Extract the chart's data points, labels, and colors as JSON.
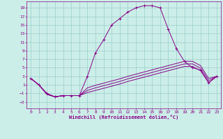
{
  "xlabel": "Windchill (Refroidissement éolien,°C)",
  "bg_color": "#cceee8",
  "grid_color": "#99cccc",
  "line_color": "#880088",
  "x_ticks": [
    0,
    1,
    2,
    3,
    4,
    5,
    6,
    7,
    8,
    9,
    10,
    11,
    12,
    13,
    14,
    15,
    16,
    17,
    18,
    19,
    20,
    21,
    22,
    23
  ],
  "y_ticks": [
    -3,
    -1,
    1,
    3,
    5,
    7,
    9,
    11,
    13,
    15,
    17,
    19
  ],
  "xlim": [
    -0.5,
    23.5
  ],
  "ylim": [
    -4.5,
    20.5
  ],
  "series": [
    {
      "x": [
        0,
        1,
        2,
        3,
        4,
        5,
        6,
        7,
        8,
        9,
        10,
        11,
        12,
        13,
        14,
        15,
        16,
        17,
        18,
        19,
        20,
        21,
        22,
        23
      ],
      "y": [
        2.5,
        1.0,
        -1.0,
        -1.8,
        -1.5,
        -1.5,
        -1.5,
        3.0,
        8.5,
        11.5,
        15.0,
        16.5,
        18.0,
        19.0,
        19.5,
        19.5,
        19.0,
        14.0,
        9.5,
        6.5,
        5.0,
        4.5,
        1.5,
        3.0
      ],
      "marker": "+"
    },
    {
      "x": [
        0,
        1,
        2,
        3,
        4,
        5,
        6,
        7,
        8,
        9,
        10,
        11,
        12,
        13,
        14,
        15,
        16,
        17,
        18,
        19,
        20,
        21,
        22,
        23
      ],
      "y": [
        2.5,
        1.0,
        -1.2,
        -1.8,
        -1.5,
        -1.5,
        -1.5,
        -0.8,
        -0.3,
        0.2,
        0.7,
        1.2,
        1.8,
        2.3,
        2.8,
        3.3,
        3.8,
        4.3,
        4.8,
        5.3,
        5.3,
        4.3,
        1.5,
        3.0
      ],
      "marker": null
    },
    {
      "x": [
        0,
        1,
        2,
        3,
        4,
        5,
        6,
        7,
        8,
        9,
        10,
        11,
        12,
        13,
        14,
        15,
        16,
        17,
        18,
        19,
        20,
        21,
        22,
        23
      ],
      "y": [
        2.5,
        1.0,
        -1.2,
        -1.8,
        -1.5,
        -1.5,
        -1.5,
        -0.3,
        0.3,
        0.8,
        1.3,
        1.8,
        2.4,
        2.9,
        3.4,
        3.9,
        4.4,
        4.9,
        5.4,
        5.9,
        5.9,
        4.9,
        2.0,
        3.0
      ],
      "marker": null
    },
    {
      "x": [
        0,
        1,
        2,
        3,
        4,
        5,
        6,
        7,
        8,
        9,
        10,
        11,
        12,
        13,
        14,
        15,
        16,
        17,
        18,
        19,
        20,
        21,
        22,
        23
      ],
      "y": [
        2.5,
        1.0,
        -1.2,
        -1.8,
        -1.5,
        -1.5,
        -1.5,
        0.3,
        0.9,
        1.4,
        1.9,
        2.4,
        3.0,
        3.5,
        4.0,
        4.5,
        5.0,
        5.5,
        6.0,
        6.5,
        6.5,
        5.5,
        2.5,
        3.0
      ],
      "marker": null
    }
  ]
}
